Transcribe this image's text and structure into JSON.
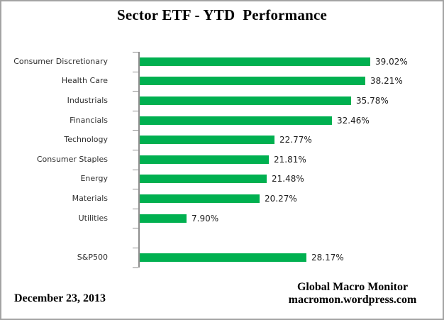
{
  "chart_data": {
    "type": "bar",
    "orientation": "horizontal",
    "title": "Sector ETF - YTD  Performance",
    "categories": [
      "Consumer Discretionary",
      "Health Care",
      "Industrials",
      "Financials",
      "Technology",
      "Consumer Staples",
      "Energy",
      "Materials",
      "Utilities",
      "S&P500"
    ],
    "values": [
      39.02,
      38.21,
      35.78,
      32.46,
      22.77,
      21.81,
      21.48,
      20.27,
      7.9,
      28.17
    ],
    "value_labels": [
      "39.02%",
      "38.21%",
      "35.78%",
      "32.46%",
      "22.77%",
      "21.81%",
      "21.48%",
      "20.27%",
      "7.90%",
      "28.17%"
    ],
    "gap_before_index": 9,
    "xlim": [
      0,
      45
    ],
    "grid": false,
    "legend": "none",
    "bar_color": "#00B050",
    "axis_color": "#8e8e8e"
  },
  "footer": {
    "date": "December 23, 2013",
    "credit_line1": "Global Macro Monitor",
    "credit_line2": "macromon.wordpress.com"
  }
}
